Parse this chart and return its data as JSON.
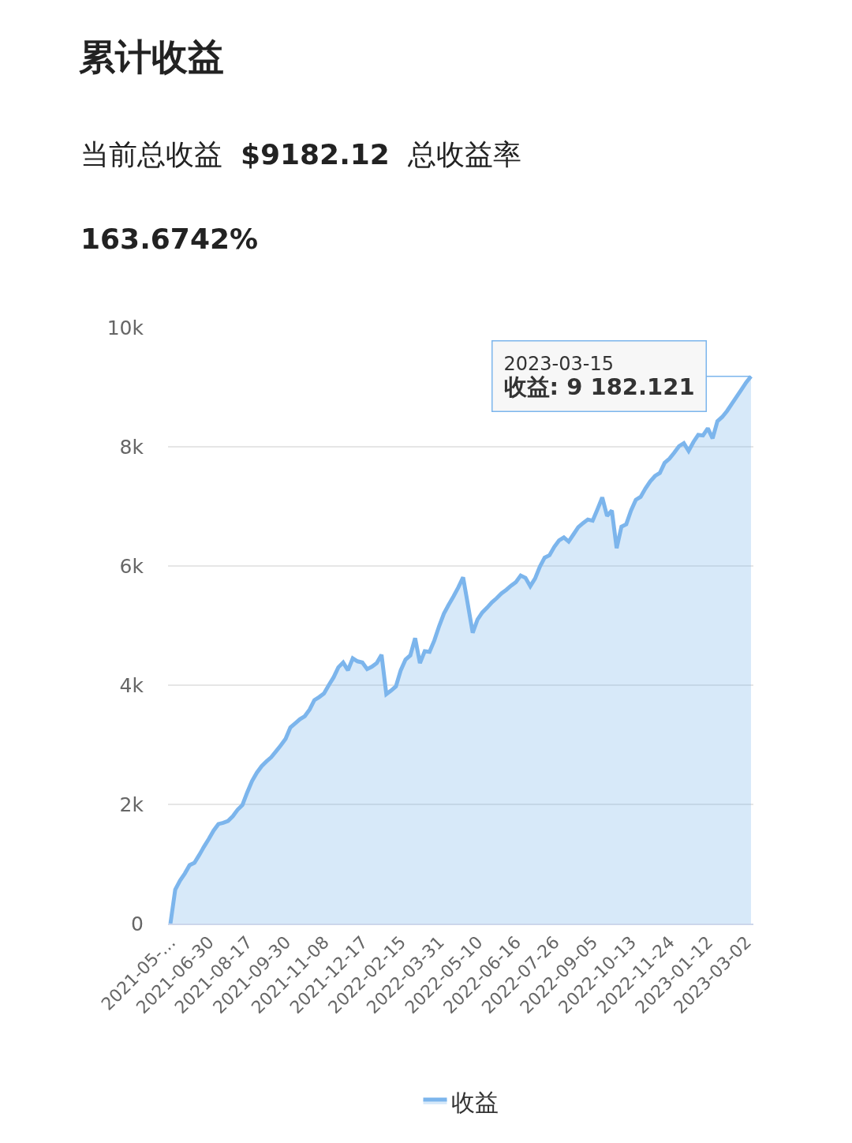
{
  "chart_data": {
    "type": "area",
    "title": "累计收益",
    "subtitle": "当前总收益 $9182.12 总收益率 163.6742%",
    "categories": [
      "2021-05-…",
      null,
      null,
      null,
      null,
      null,
      null,
      null,
      "2021-06-30",
      null,
      null,
      null,
      null,
      null,
      null,
      null,
      "2021-08-17",
      null,
      null,
      null,
      null,
      null,
      null,
      null,
      "2021-09-30",
      null,
      null,
      null,
      null,
      null,
      null,
      null,
      "2021-11-08",
      null,
      null,
      null,
      null,
      null,
      null,
      null,
      "2021-12-17",
      null,
      null,
      null,
      null,
      null,
      null,
      null,
      "2022-02-15",
      null,
      null,
      null,
      null,
      null,
      null,
      null,
      "2022-03-31",
      null,
      null,
      null,
      null,
      null,
      null,
      null,
      "2022-05-10",
      null,
      null,
      null,
      null,
      null,
      null,
      null,
      "2022-06-16",
      null,
      null,
      null,
      null,
      null,
      null,
      null,
      "2022-07-26",
      null,
      null,
      null,
      null,
      null,
      null,
      null,
      "2022-09-05",
      null,
      null,
      null,
      null,
      null,
      null,
      null,
      "2022-10-13",
      null,
      null,
      null,
      null,
      null,
      null,
      null,
      "2022-11-24",
      null,
      null,
      null,
      null,
      null,
      null,
      null,
      "2023-01-12",
      null,
      null,
      null,
      null,
      null,
      null,
      null,
      "2023-03-02",
      null
    ],
    "series": [
      {
        "name": "收益",
        "color": "#7cb5ec",
        "values": [
          0,
          570,
          720,
          840,
          980,
          1020,
          1150,
          1290,
          1420,
          1560,
          1670,
          1690,
          1720,
          1800,
          1910,
          1990,
          2200,
          2390,
          2530,
          2640,
          2720,
          2790,
          2890,
          2990,
          3100,
          3290,
          3360,
          3430,
          3480,
          3590,
          3750,
          3800,
          3860,
          4000,
          4130,
          4300,
          4380,
          4250,
          4450,
          4400,
          4380,
          4270,
          4310,
          4370,
          4510,
          3850,
          3910,
          3980,
          4250,
          4430,
          4500,
          4790,
          4370,
          4570,
          4560,
          4750,
          4990,
          5200,
          5350,
          5490,
          5640,
          5810,
          5350,
          4880,
          5100,
          5220,
          5300,
          5390,
          5460,
          5540,
          5600,
          5670,
          5730,
          5840,
          5800,
          5660,
          5790,
          5990,
          6140,
          6180,
          6320,
          6430,
          6480,
          6410,
          6530,
          6650,
          6720,
          6780,
          6760,
          6950,
          7150,
          6840,
          6930,
          6300,
          6660,
          6700,
          6930,
          7110,
          7160,
          7300,
          7420,
          7510,
          7560,
          7730,
          7800,
          7900,
          8010,
          8060,
          7930,
          8080,
          8200,
          8190,
          8310,
          8140,
          8430,
          8500,
          8600,
          8720,
          8840,
          8960,
          9080,
          9182.121
        ]
      }
    ],
    "ylim": [
      0,
      10000
    ],
    "yticks": [
      0,
      {
        "value": 2000,
        "label": "2k"
      },
      {
        "value": 4000,
        "label": "4k"
      },
      {
        "value": 6000,
        "label": "6k"
      },
      {
        "value": 8000,
        "label": "8k"
      },
      {
        "value": 10000,
        "label": "10k"
      }
    ],
    "grid": "y",
    "legend": "bottom",
    "annotations": [
      "2023-03-15\n收益: 9 182.121"
    ]
  }
}
